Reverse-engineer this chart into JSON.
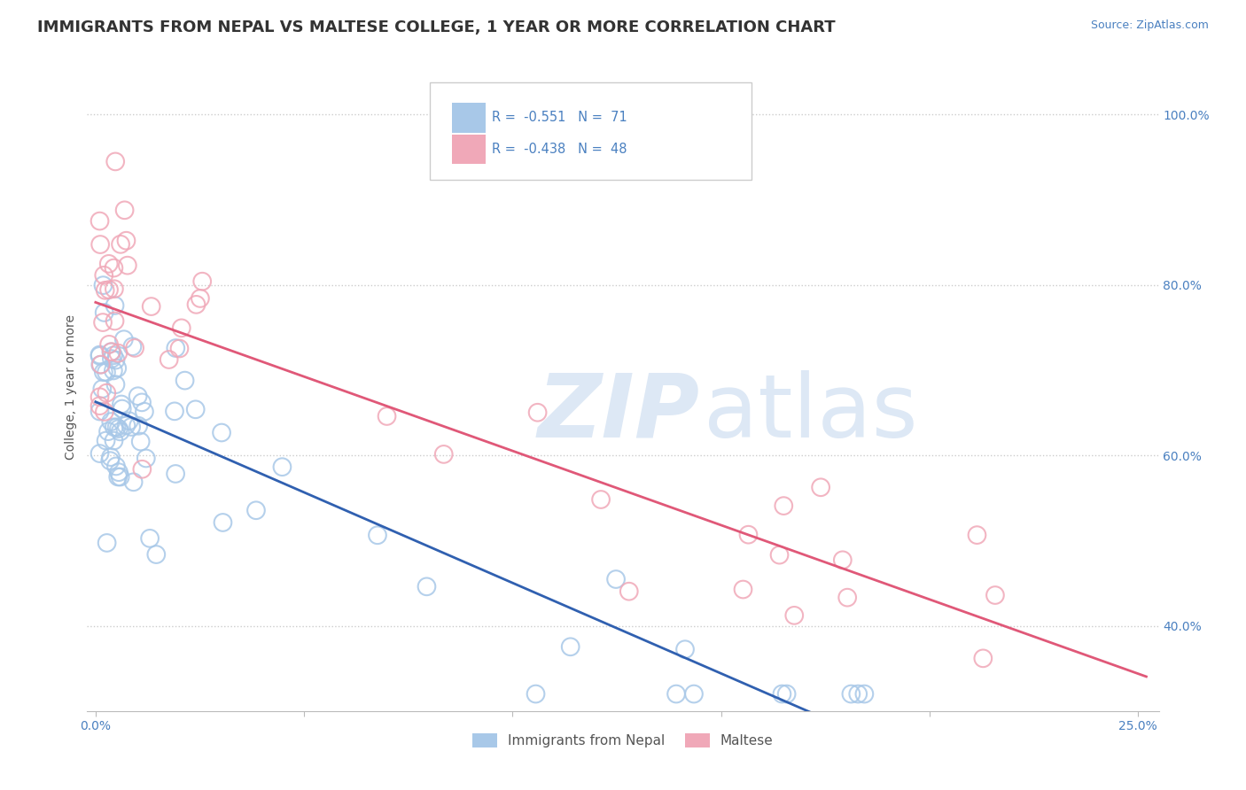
{
  "title": "IMMIGRANTS FROM NEPAL VS MALTESE COLLEGE, 1 YEAR OR MORE CORRELATION CHART",
  "source_text": "Source: ZipAtlas.com",
  "ylabel": "College, 1 year or more",
  "xlim": [
    -0.002,
    0.255
  ],
  "ylim": [
    0.3,
    1.06
  ],
  "xtick_positions": [
    0.0,
    0.05,
    0.1,
    0.15,
    0.2,
    0.25
  ],
  "xtick_labels": [
    "0.0%",
    "",
    "",
    "",
    "",
    "25.0%"
  ],
  "ytick_positions": [
    0.4,
    0.6,
    0.8,
    1.0
  ],
  "ytick_labels": [
    "40.0%",
    "60.0%",
    "80.0%",
    "100.0%"
  ],
  "grid_color": "#cccccc",
  "background_color": "#ffffff",
  "watermark_color": "#dde8f5",
  "blue_color": "#a8c8e8",
  "pink_color": "#f0a8b8",
  "blue_line_color": "#3060b0",
  "pink_line_color": "#e05878",
  "blue_dashed_color": "#8ab0d8",
  "legend_R1": "-0.551",
  "legend_N1": "71",
  "legend_R2": "-0.438",
  "legend_N2": "48",
  "legend_label1": "Immigrants from Nepal",
  "legend_label2": "Maltese",
  "title_fontsize": 13,
  "axis_label_fontsize": 10,
  "tick_fontsize": 10
}
